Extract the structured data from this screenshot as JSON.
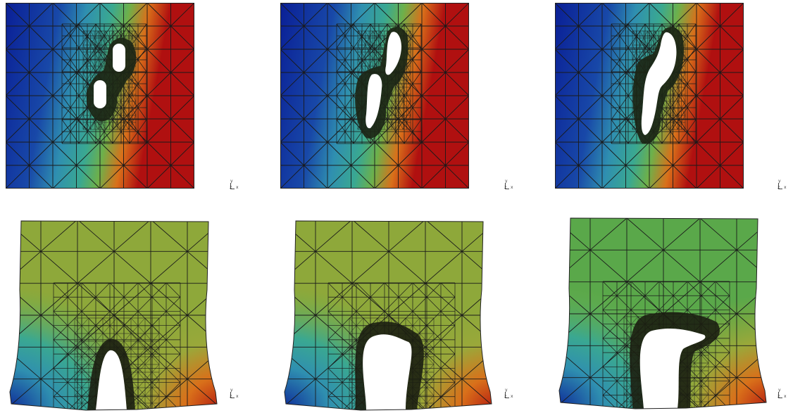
{
  "figure": {
    "panels": [
      {
        "row": 1,
        "column": 1,
        "stage": "initial",
        "color_field": "horizontal gradient blue to red",
        "holes": 2,
        "mesh": "adaptive triangular, refined around holes"
      },
      {
        "row": 1,
        "column": 2,
        "stage": "intermediate",
        "color_field": "horizontal gradient blue to red",
        "holes": 2,
        "mesh": "adaptive triangular, refined around holes"
      },
      {
        "row": 1,
        "column": 3,
        "stage": "final",
        "color_field": "horizontal gradient blue to red",
        "holes": 1,
        "mesh": "adaptive triangular, refined around hole"
      },
      {
        "row": 2,
        "column": 1,
        "stage": "initial",
        "color_field": "green plate with blue bottom-left and red bottom-right corners",
        "notch": "narrow",
        "mesh": "adaptive triangular, refined around notch"
      },
      {
        "row": 2,
        "column": 2,
        "stage": "intermediate",
        "color_field": "green plate with blue bottom-left and red bottom-right corners",
        "notch": "widened",
        "mesh": "adaptive triangular, refined around notch"
      },
      {
        "row": 2,
        "column": 3,
        "stage": "final",
        "color_field": "green plate with blue bottom-left and red bottom-right corners",
        "notch": "widened",
        "mesh": "adaptive triangular, refined around notch"
      }
    ],
    "axes_triad": {
      "y": "y",
      "z": "z",
      "x": "x"
    },
    "colors": {
      "blue": "#0a1f96",
      "cyan": "#2f8fb0",
      "teal": "#3aa891",
      "green": "#6eb04a",
      "olive": "#8ea83a",
      "orange": "#d9701a",
      "red": "#b01010",
      "hole": "#ffffff",
      "mesh": "#1a1a1a"
    }
  }
}
